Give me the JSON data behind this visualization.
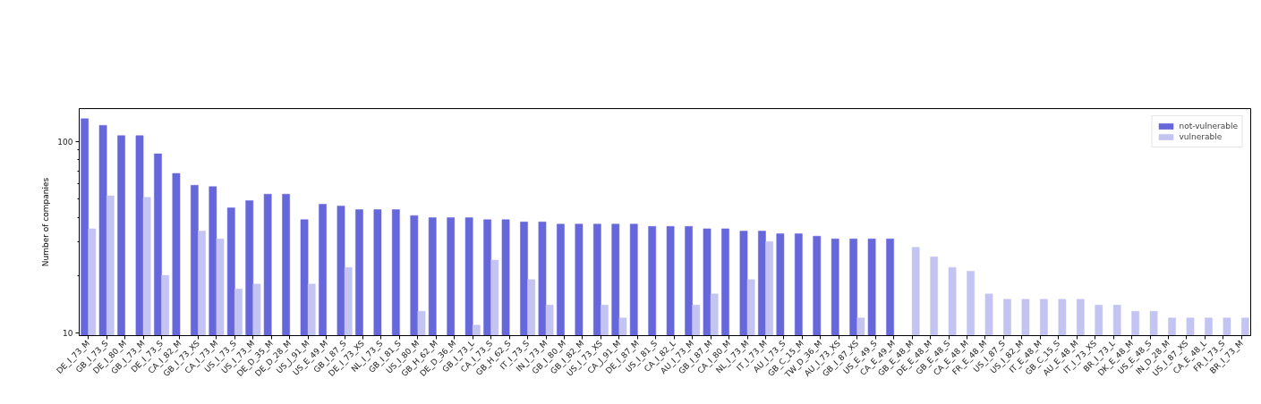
{
  "chart_data": {
    "type": "bar",
    "categories": [
      "DE_I_73_M",
      "GB_I_73_S",
      "DE_I_80_M",
      "GB_I_73_M",
      "DE_I_73_S",
      "CA_I_82_M",
      "GB_I_73_XS",
      "CA_I_73_M",
      "US_I_73_S",
      "US_I_73_M",
      "DE_D_35_M",
      "DE_D_28_M",
      "US_J_91_M",
      "US_E_49_M",
      "GB_I_87_S",
      "DE_I_73_XS",
      "NL_I_73_S",
      "GB_I_81_S",
      "US_I_80_M",
      "GB_H_62_M",
      "DE_D_36_M",
      "GB_I_73_L",
      "CA_I_73_S",
      "GB_H_62_S",
      "IT_I_73_S",
      "IN_I_73_M",
      "GB_I_80_M",
      "GB_I_82_M",
      "US_I_73_XS",
      "CA_J_91_M",
      "DE_I_87_M",
      "US_I_81_S",
      "CA_I_82_L",
      "AU_I_73_M",
      "GB_I_87_M",
      "CA_I_80_M",
      "NL_I_73_M",
      "IT_I_73_M",
      "AU_I_73_S",
      "GB_C_15_M",
      "TW_D_36_M",
      "AU_I_73_XS",
      "GB_I_87_XS",
      "US_E_49_S",
      "CA_E_49_M",
      "GB_E_48_M",
      "DE_E_48_M",
      "GB_E_48_S",
      "CA_E_48_M",
      "FR_E_48_M",
      "US_I_87_S",
      "US_I_82_M",
      "IT_E_48_M",
      "GB_C_15_S",
      "AU_E_48_M",
      "IT_I_73_XS",
      "BR_I_73_L",
      "DK_E_48_M",
      "US_E_48_S",
      "IN_D_28_M",
      "US_I_87_XS",
      "CA_E_48_L",
      "FR_I_73_S",
      "BR_I_73_M"
    ],
    "series": [
      {
        "name": "not-vulnerable",
        "color": "#6767dc",
        "values": [
          131,
          121,
          107,
          107,
          86,
          68,
          59,
          58,
          45,
          49,
          53,
          53,
          39,
          47,
          46,
          44,
          44,
          44,
          41,
          40,
          40,
          40,
          39,
          39,
          38,
          38,
          37,
          37,
          37,
          37,
          37,
          36,
          36,
          36,
          35,
          35,
          34,
          34,
          33,
          33,
          32,
          31,
          31,
          31,
          31,
          null,
          null,
          null,
          null,
          null,
          null,
          null,
          null,
          null,
          null,
          null,
          null,
          null,
          null,
          null,
          null,
          null,
          null,
          null
        ]
      },
      {
        "name": "vulnerable",
        "color": "#c4c4f2",
        "values": [
          35,
          52,
          null,
          51,
          20,
          null,
          34,
          31,
          17,
          18,
          null,
          null,
          18,
          null,
          22,
          null,
          null,
          null,
          13,
          null,
          null,
          11,
          24,
          null,
          19,
          14,
          null,
          null,
          14,
          12,
          null,
          null,
          null,
          14,
          16,
          null,
          19,
          30,
          null,
          null,
          null,
          null,
          12,
          null,
          null,
          28,
          25,
          22,
          21,
          16,
          15,
          15,
          15,
          15,
          15,
          14,
          14,
          13,
          13,
          12,
          12,
          12,
          12,
          12
        ]
      }
    ],
    "ylabel": "Number of companies",
    "log": true,
    "ylim": [
      9.7,
      148
    ],
    "yticks": [
      10,
      {
        "value": 20,
        "label": null
      },
      {
        "value": 30,
        "label": null
      },
      {
        "value": 40,
        "label": null
      },
      {
        "value": 50,
        "label": null
      },
      {
        "value": 60,
        "label": null
      },
      {
        "value": 70,
        "label": null
      },
      {
        "value": 80,
        "label": null
      },
      {
        "value": 90,
        "label": null
      },
      100
    ],
    "legend": "top right"
  }
}
